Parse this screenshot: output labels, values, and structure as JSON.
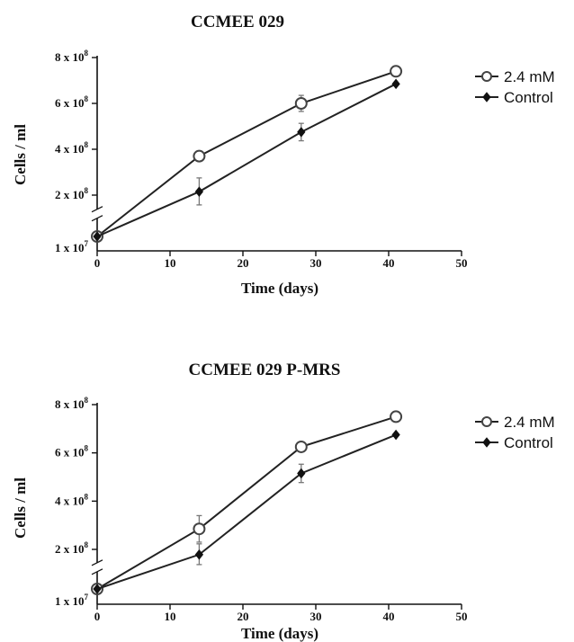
{
  "chart_data": [
    {
      "type": "line",
      "title": "CCMEE 029",
      "xlabel": "Time (days)",
      "ylabel": "Cells / ml",
      "xlim": [
        0,
        50
      ],
      "x_ticks": [
        "0",
        "10",
        "20",
        "30",
        "40",
        "50"
      ],
      "y_ticks": [
        {
          "value": 10000000,
          "base": "1 x 10",
          "exp": "7"
        },
        {
          "value": 200000000,
          "base": "2 x 10",
          "exp": "8"
        },
        {
          "value": 400000000,
          "base": "4 x 10",
          "exp": "8"
        },
        {
          "value": 600000000,
          "base": "6 x 10",
          "exp": "8"
        },
        {
          "value": 800000000,
          "base": "8 x 10",
          "exp": "8"
        }
      ],
      "axis_break": true,
      "legend_position": "top-right",
      "series": [
        {
          "name": "2.4 mM",
          "marker": "open-circle",
          "x": [
            0,
            14,
            28,
            41
          ],
          "y": [
            10000000,
            370000000,
            600000000,
            740000000
          ],
          "err": [
            10000000,
            10000000,
            35000000,
            10000000
          ]
        },
        {
          "name": "Control",
          "marker": "diamond",
          "x": [
            0,
            14,
            28,
            41
          ],
          "y": [
            10000000,
            215000000,
            475000000,
            685000000
          ],
          "err": [
            0,
            60000000,
            38000000,
            0
          ]
        }
      ]
    },
    {
      "type": "line",
      "title": "CCMEE 029 P-MRS",
      "xlabel": "Time (days)",
      "ylabel": "Cells / ml",
      "xlim": [
        0,
        50
      ],
      "x_ticks": [
        "0",
        "10",
        "20",
        "30",
        "40",
        "50"
      ],
      "y_ticks": [
        {
          "value": 10000000,
          "base": "1 x 10",
          "exp": "7"
        },
        {
          "value": 200000000,
          "base": "2 x 10",
          "exp": "8"
        },
        {
          "value": 400000000,
          "base": "4 x 10",
          "exp": "8"
        },
        {
          "value": 600000000,
          "base": "6 x 10",
          "exp": "8"
        },
        {
          "value": 800000000,
          "base": "8 x 10",
          "exp": "8"
        }
      ],
      "axis_break": true,
      "legend_position": "top-right",
      "series": [
        {
          "name": "2.4 mM",
          "marker": "open-circle",
          "x": [
            0,
            14,
            28,
            41
          ],
          "y": [
            10000000,
            285000000,
            625000000,
            750000000
          ],
          "err": [
            10000000,
            55000000,
            10000000,
            10000000
          ]
        },
        {
          "name": "Control",
          "marker": "diamond",
          "x": [
            0,
            14,
            28,
            41
          ],
          "y": [
            10000000,
            175000000,
            515000000,
            675000000
          ],
          "err": [
            0,
            48000000,
            38000000,
            0
          ]
        }
      ]
    }
  ]
}
